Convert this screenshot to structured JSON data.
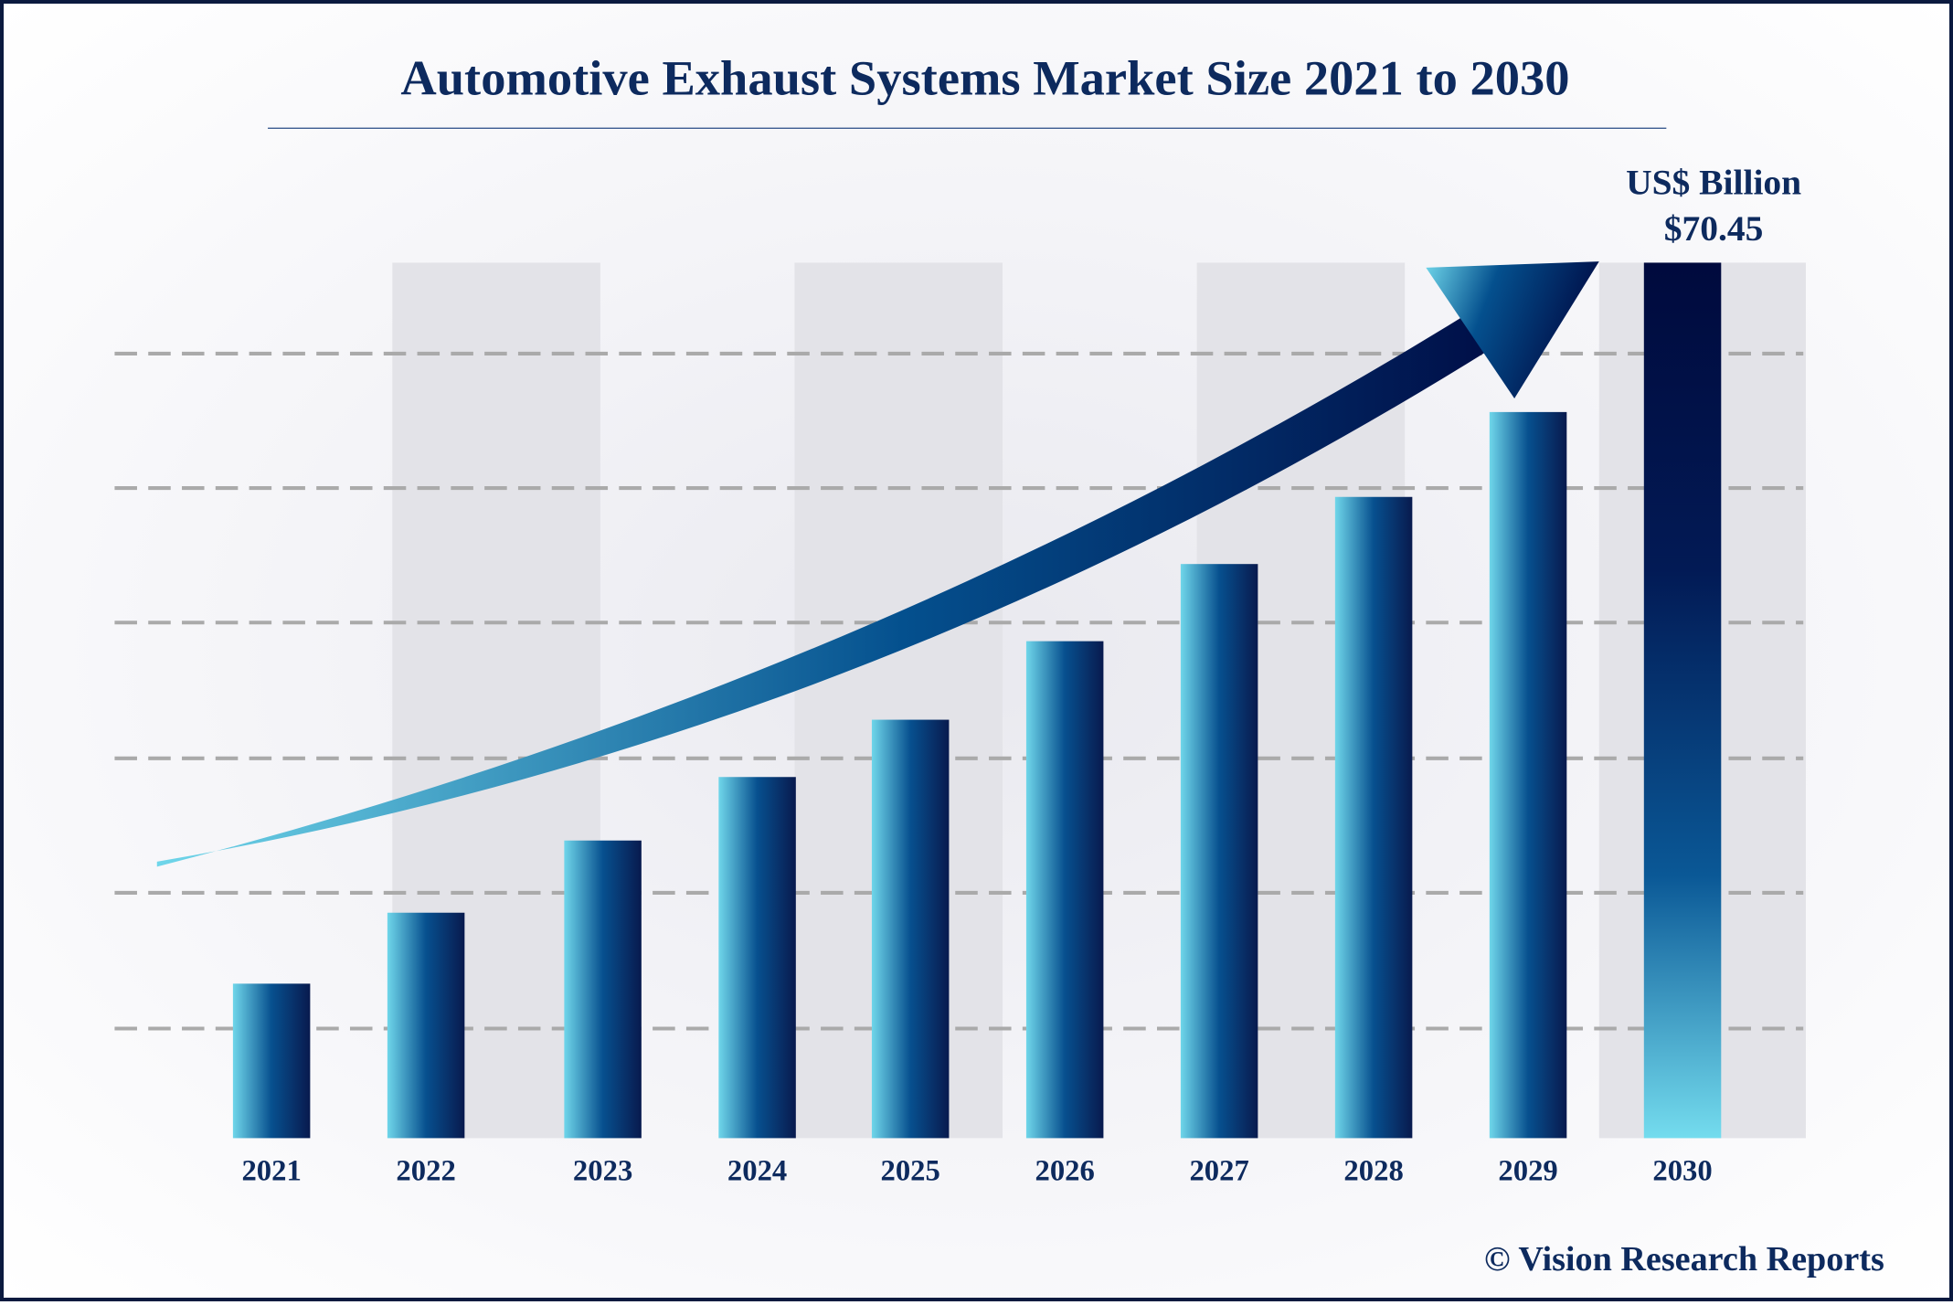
{
  "chart_data": {
    "type": "bar",
    "title": "Automotive Exhaust Systems Market Size 2021 to 2030",
    "unit_label": "US$ Billion",
    "highlight_label": "$70.45",
    "categories": [
      "2021",
      "2022",
      "2023",
      "2024",
      "2025",
      "2026",
      "2027",
      "2028",
      "2029",
      "2030"
    ],
    "values": [
      12.43,
      18.14,
      23.95,
      29.06,
      33.67,
      39.99,
      46.2,
      51.6,
      58.43,
      70.45
    ],
    "ylim": [
      0,
      70.45
    ],
    "grid": "dashed horizontal",
    "trend_arrow": true,
    "colors": {
      "bar_light": "#6fd6ea",
      "bar_mid": "#07508f",
      "bar_dark": "#081a4e",
      "highlight_dark": "#000a3d",
      "title": "#0d2a5e",
      "band": "#e3e3e8"
    }
  },
  "footer": {
    "copyright": "© Vision Research Reports"
  }
}
